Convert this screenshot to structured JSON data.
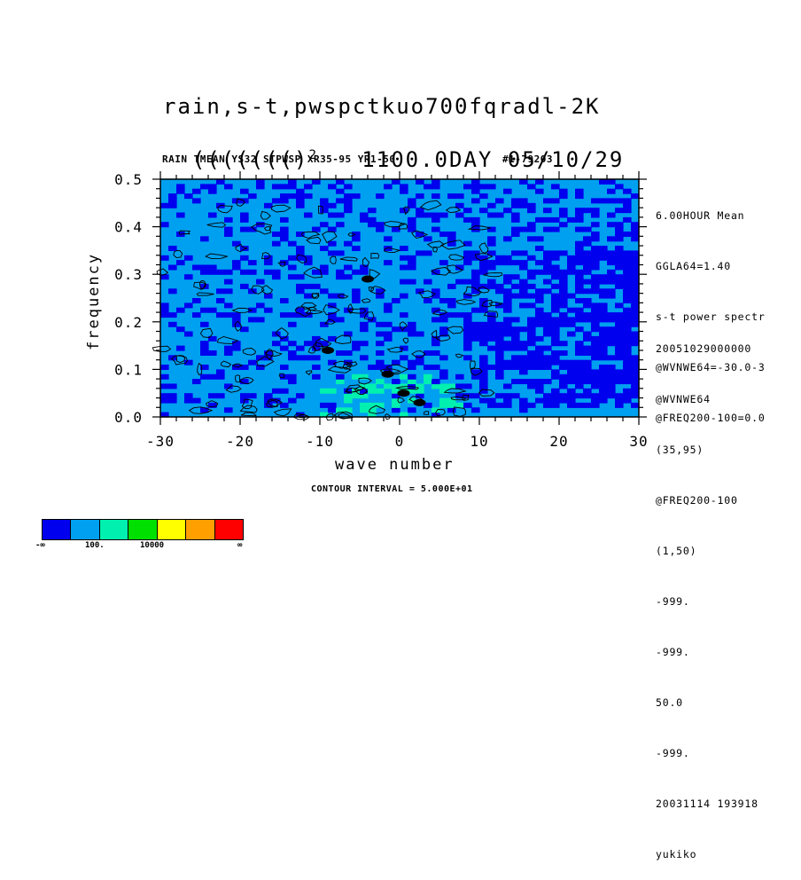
{
  "title_line1": "rain,s-t,pwspctkuo700fqradl-2K",
  "title_line2_prefix": "((((((()",
  "title_line2_sup": "2",
  "title_line2_rest": "1100.0DAY 05/10/29",
  "subtitle": "RAIN TMEAN YS32 STPWSP XR35-95 YR1-50",
  "subtitle_id": "#1-79203",
  "side_info": [
    "6.00HOUR Mean",
    "GGLA64=1.40",
    "s-t power spectr",
    "@WVNWE64=-30.0-3",
    "@FREQ200-100=0.0"
  ],
  "side_meta": [
    "20051029000000",
    "@WVNWE64",
    "(35,95)",
    "@FREQ200-100",
    "(1,50)",
    "-999.",
    "-999.",
    "50.0",
    "-999.",
    "20031114 193918",
    "yukiko"
  ],
  "contour_interval": "CONTOUR INTERVAL = 5.000E+01",
  "colorbar": {
    "colors": [
      "#0000ee",
      "#00a0f0",
      "#00f0b0",
      "#00e000",
      "#ffff00",
      "#ffa000",
      "#ff0000"
    ],
    "labels": [
      "-∞",
      "100.",
      "10000",
      "∞"
    ]
  },
  "chart_data": {
    "type": "heatmap",
    "xlabel": "wave number",
    "ylabel": "frequency",
    "xlim": [
      -30,
      30
    ],
    "ylim": [
      0.0,
      0.5
    ],
    "x_ticks": [
      "-30",
      "-20",
      "-10",
      "0",
      "10",
      "20",
      "30"
    ],
    "y_ticks": [
      "0.0",
      "0.1",
      "0.2",
      "0.3",
      "0.4",
      "0.5"
    ],
    "fill_levels": [
      "<100",
      "100-10000",
      ">10000"
    ],
    "description_regions": [
      {
        "x_range": [
          -30,
          10
        ],
        "y_range": [
          0.0,
          0.5
        ],
        "level": "100-10000 with <100 patches"
      },
      {
        "x_range": [
          10,
          30
        ],
        "y_range": [
          0.0,
          0.35
        ],
        "level": "<100 dominant"
      },
      {
        "x_range": [
          -10,
          5
        ],
        "y_range": [
          0.0,
          0.1
        ],
        "level": "peak >10000 near x=0, y=0.03"
      }
    ]
  }
}
